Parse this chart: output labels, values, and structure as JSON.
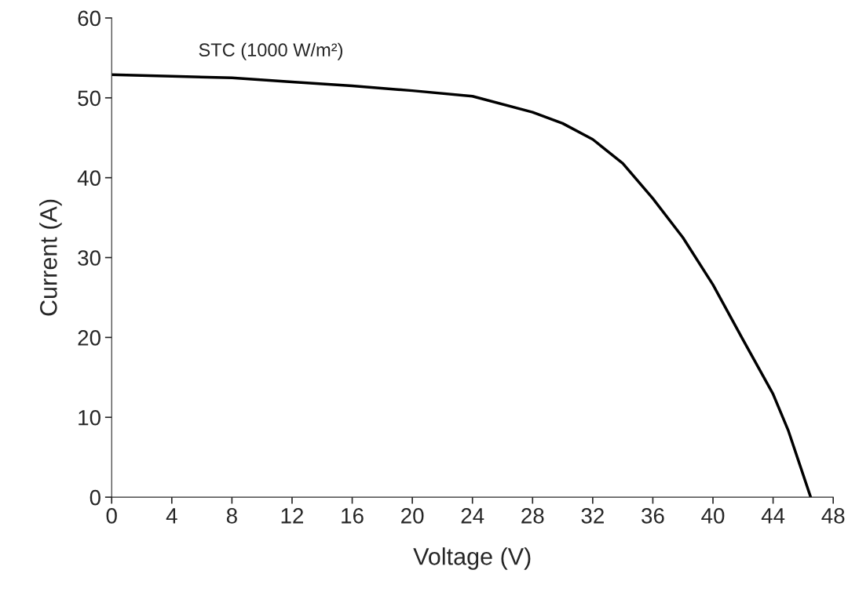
{
  "chart_data": {
    "type": "line",
    "xlabel": "Voltage (V)",
    "ylabel": "Current (A)",
    "annotations": [
      "STC (1000 W/m²)"
    ],
    "series": [
      {
        "color": "#000000",
        "x": [
          0,
          4,
          8,
          12,
          16,
          20,
          24,
          28,
          30,
          32,
          34,
          36,
          38,
          40,
          42,
          44,
          45,
          46.5
        ],
        "values": [
          52.9,
          52.7,
          52.5,
          52.0,
          51.5,
          50.9,
          50.2,
          48.2,
          46.8,
          44.8,
          41.8,
          37.4,
          32.5,
          26.6,
          19.7,
          12.9,
          8.4,
          0
        ]
      }
    ],
    "xlim": [
      0,
      48
    ],
    "xticks": [
      0,
      4,
      8,
      12,
      16,
      20,
      24,
      28,
      32,
      36,
      40,
      44,
      48
    ],
    "ylim": [
      0,
      60
    ],
    "yticks": [
      0,
      10,
      20,
      30,
      40,
      50,
      60
    ],
    "grid": false,
    "legend": false,
    "marker": "none",
    "line_style": "solid"
  }
}
